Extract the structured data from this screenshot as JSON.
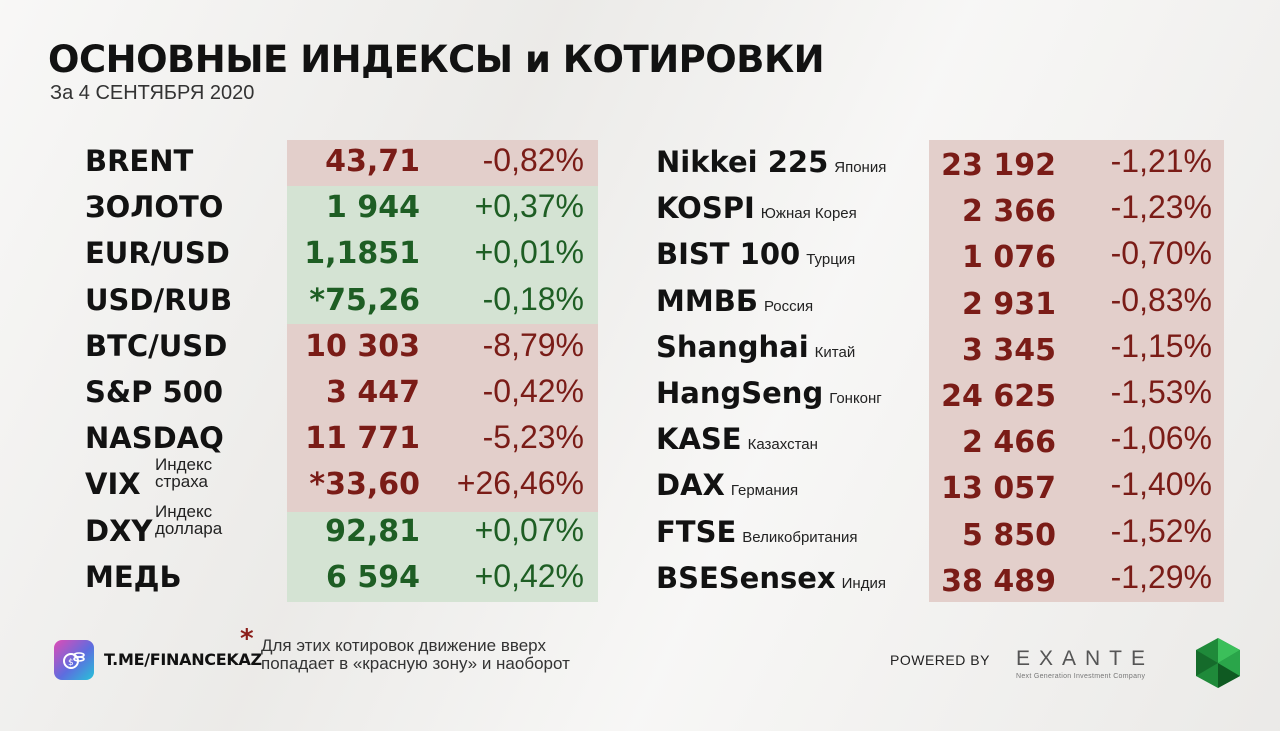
{
  "header": {
    "title": "ОСНОВНЫЕ ИНДЕКСЫ и КОТИРОВКИ",
    "date": "За 4 СЕНТЯБРЯ 2020"
  },
  "left_quotes": [
    {
      "name": "BRENT",
      "value": "43,71",
      "change": "-0,82%",
      "zone": "red"
    },
    {
      "name": "ЗОЛОТО",
      "value": "1 944",
      "change": "+0,37%",
      "zone": "green"
    },
    {
      "name": "EUR/USD",
      "value": "1,1851",
      "change": "+0,01%",
      "zone": "green"
    },
    {
      "name": "USD/RUB",
      "value": "*75,26",
      "change": "-0,18%",
      "zone": "green"
    },
    {
      "name": "BTC/USD",
      "value": "10 303",
      "change": "-8,79%",
      "zone": "red"
    },
    {
      "name": "S&P 500",
      "value": "3 447",
      "change": "-0,42%",
      "zone": "red"
    },
    {
      "name": "NASDAQ",
      "value": "11 771",
      "change": "-5,23%",
      "zone": "red"
    },
    {
      "name": "VIX",
      "note": "Индекс страха",
      "value": "*33,60",
      "change": "+26,46%",
      "zone": "red"
    },
    {
      "name": "DXY",
      "note": "Индекс доллара",
      "value": "92,81",
      "change": "+0,07%",
      "zone": "green"
    },
    {
      "name": "МЕДЬ",
      "value": "6 594",
      "change": "+0,42%",
      "zone": "green"
    }
  ],
  "right_quotes": [
    {
      "name": "Nikkei 225",
      "country": "Япония",
      "value": "23 192",
      "change": "-1,21%"
    },
    {
      "name": "KOSPI",
      "country": "Южная Корея",
      "value": "2 366",
      "change": "-1,23%"
    },
    {
      "name": "BIST 100",
      "country": "Турция",
      "value": "1 076",
      "change": "-0,70%"
    },
    {
      "name": "ММВБ",
      "country": "Россия",
      "value": "2 931",
      "change": "-0,83%"
    },
    {
      "name": "Shanghai",
      "country": "Китай",
      "value": "3 345",
      "change": "-1,15%"
    },
    {
      "name": "HangSeng",
      "country": "Гонконг",
      "value": "24 625",
      "change": "-1,53%"
    },
    {
      "name": "KASE",
      "country": "Казахстан",
      "value": "2 466",
      "change": "-1,06%"
    },
    {
      "name": "DAX",
      "country": "Германия",
      "value": "13 057",
      "change": "-1,40%"
    },
    {
      "name": "FTSE",
      "country": "Великобритания",
      "value": "5 850",
      "change": "-1,52%"
    },
    {
      "name": "BSESensex",
      "country": "Индия",
      "value": "38 489",
      "change": "-1,29%"
    }
  ],
  "footer": {
    "channel": "T.ME/FINANCEKAZ",
    "asterisk": "*",
    "footnote": "Для этих котировок движение вверх попадает в «красную зону» и наоборот",
    "powered_by": "POWERED BY",
    "brand": "EXANTE",
    "brand_tagline": "Next Generation Investment Company"
  },
  "colors": {
    "red_zone": "#e3cfcb",
    "green_zone": "#d4e3d3",
    "red_text": "#7a1c17",
    "green_text": "#1e5e24"
  },
  "icons": [
    "coins-logo-icon",
    "exante-gem-icon"
  ]
}
